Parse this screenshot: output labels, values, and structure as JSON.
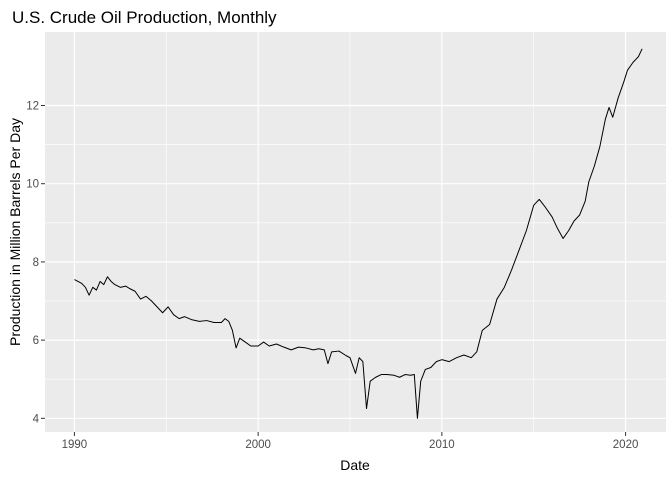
{
  "chart_data": {
    "type": "line",
    "title": "U.S. Crude Oil Production, Monthly",
    "xlabel": "Date",
    "ylabel": "Production in Million Barrels Per Day",
    "xlim": [
      1988.4,
      2022.2
    ],
    "ylim": [
      3.65,
      13.88
    ],
    "x_ticks": [
      1990,
      2000,
      2010,
      2020
    ],
    "x_tick_labels": [
      "1990",
      "2000",
      "2010",
      "2020"
    ],
    "y_ticks": [
      4,
      6,
      8,
      10,
      12
    ],
    "y_tick_labels": [
      "4",
      "6",
      "8",
      "10",
      "12"
    ],
    "grid": true,
    "legend": "none",
    "series": [
      {
        "values": [
          [
            1990.0,
            7.55
          ],
          [
            1990.2,
            7.5
          ],
          [
            1990.4,
            7.45
          ],
          [
            1990.6,
            7.35
          ],
          [
            1990.8,
            7.15
          ],
          [
            1991.0,
            7.35
          ],
          [
            1991.2,
            7.28
          ],
          [
            1991.4,
            7.5
          ],
          [
            1991.6,
            7.42
          ],
          [
            1991.8,
            7.62
          ],
          [
            1992.0,
            7.5
          ],
          [
            1992.2,
            7.42
          ],
          [
            1992.5,
            7.35
          ],
          [
            1992.8,
            7.38
          ],
          [
            1993.0,
            7.32
          ],
          [
            1993.3,
            7.25
          ],
          [
            1993.6,
            7.05
          ],
          [
            1993.9,
            7.12
          ],
          [
            1994.2,
            7.0
          ],
          [
            1994.5,
            6.85
          ],
          [
            1994.8,
            6.7
          ],
          [
            1995.1,
            6.85
          ],
          [
            1995.4,
            6.65
          ],
          [
            1995.7,
            6.55
          ],
          [
            1996.0,
            6.6
          ],
          [
            1996.4,
            6.52
          ],
          [
            1996.8,
            6.48
          ],
          [
            1997.2,
            6.5
          ],
          [
            1997.6,
            6.45
          ],
          [
            1998.0,
            6.45
          ],
          [
            1998.2,
            6.55
          ],
          [
            1998.4,
            6.48
          ],
          [
            1998.6,
            6.25
          ],
          [
            1998.8,
            5.8
          ],
          [
            1999.0,
            6.05
          ],
          [
            1999.3,
            5.95
          ],
          [
            1999.6,
            5.85
          ],
          [
            2000.0,
            5.85
          ],
          [
            2000.3,
            5.95
          ],
          [
            2000.6,
            5.85
          ],
          [
            2001.0,
            5.9
          ],
          [
            2001.4,
            5.82
          ],
          [
            2001.8,
            5.75
          ],
          [
            2002.2,
            5.82
          ],
          [
            2002.6,
            5.8
          ],
          [
            2003.0,
            5.75
          ],
          [
            2003.3,
            5.78
          ],
          [
            2003.6,
            5.75
          ],
          [
            2003.8,
            5.4
          ],
          [
            2004.0,
            5.7
          ],
          [
            2004.4,
            5.72
          ],
          [
            2004.8,
            5.6
          ],
          [
            2005.0,
            5.55
          ],
          [
            2005.3,
            5.15
          ],
          [
            2005.5,
            5.55
          ],
          [
            2005.7,
            5.45
          ],
          [
            2005.9,
            4.25
          ],
          [
            2006.1,
            4.95
          ],
          [
            2006.4,
            5.05
          ],
          [
            2006.7,
            5.12
          ],
          [
            2007.0,
            5.12
          ],
          [
            2007.4,
            5.1
          ],
          [
            2007.7,
            5.05
          ],
          [
            2008.0,
            5.12
          ],
          [
            2008.3,
            5.1
          ],
          [
            2008.5,
            5.12
          ],
          [
            2008.67,
            4.0
          ],
          [
            2008.85,
            4.95
          ],
          [
            2009.1,
            5.25
          ],
          [
            2009.4,
            5.3
          ],
          [
            2009.7,
            5.45
          ],
          [
            2010.0,
            5.5
          ],
          [
            2010.4,
            5.45
          ],
          [
            2010.8,
            5.55
          ],
          [
            2011.2,
            5.62
          ],
          [
            2011.6,
            5.55
          ],
          [
            2011.9,
            5.7
          ],
          [
            2012.2,
            6.25
          ],
          [
            2012.6,
            6.4
          ],
          [
            2013.0,
            7.05
          ],
          [
            2013.4,
            7.35
          ],
          [
            2013.8,
            7.8
          ],
          [
            2014.2,
            8.3
          ],
          [
            2014.6,
            8.8
          ],
          [
            2015.0,
            9.45
          ],
          [
            2015.3,
            9.6
          ],
          [
            2015.6,
            9.42
          ],
          [
            2016.0,
            9.15
          ],
          [
            2016.3,
            8.85
          ],
          [
            2016.6,
            8.6
          ],
          [
            2016.9,
            8.8
          ],
          [
            2017.2,
            9.05
          ],
          [
            2017.5,
            9.2
          ],
          [
            2017.8,
            9.55
          ],
          [
            2018.0,
            10.05
          ],
          [
            2018.3,
            10.45
          ],
          [
            2018.6,
            10.95
          ],
          [
            2018.9,
            11.65
          ],
          [
            2019.1,
            11.95
          ],
          [
            2019.3,
            11.7
          ],
          [
            2019.6,
            12.2
          ],
          [
            2019.9,
            12.6
          ],
          [
            2020.1,
            12.9
          ],
          [
            2020.4,
            13.1
          ],
          [
            2020.7,
            13.25
          ],
          [
            2020.9,
            13.45
          ]
        ]
      }
    ]
  }
}
